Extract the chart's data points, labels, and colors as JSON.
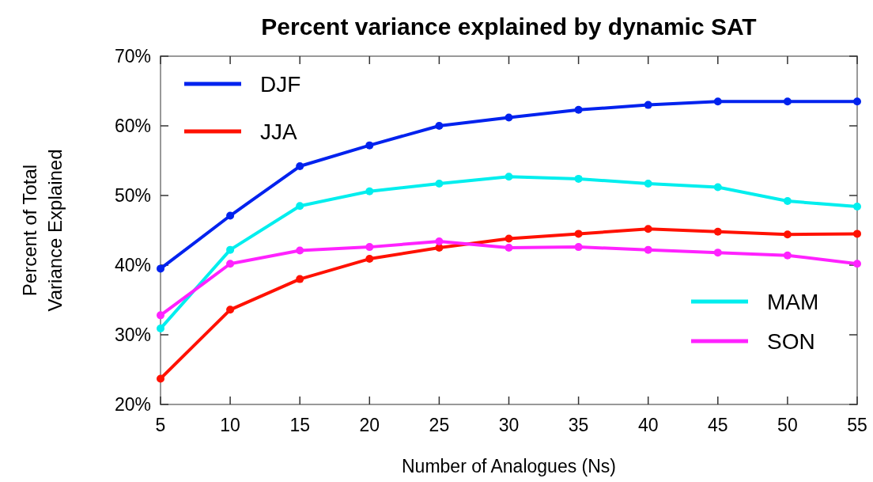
{
  "chart_data": {
    "type": "line",
    "title": "Percent variance explained by dynamic SAT",
    "xlabel": "Number of Analogues (Ns)",
    "ylabel": "Percent of Total\nVariance Explained",
    "x": [
      5,
      10,
      15,
      20,
      25,
      30,
      35,
      40,
      45,
      50,
      55
    ],
    "series": [
      {
        "name": "DJF",
        "color": "#0022ee",
        "values": [
          39.5,
          47.1,
          54.2,
          57.2,
          60.0,
          61.2,
          62.3,
          63.0,
          63.5,
          63.5,
          63.5
        ]
      },
      {
        "name": "JJA",
        "color": "#ff1100",
        "values": [
          23.7,
          33.6,
          38.0,
          40.9,
          42.5,
          43.8,
          44.5,
          45.2,
          44.8,
          44.4,
          44.5
        ]
      },
      {
        "name": "MAM",
        "color": "#00eeee",
        "values": [
          30.9,
          42.2,
          48.5,
          50.6,
          51.7,
          52.7,
          52.4,
          51.7,
          51.2,
          49.2,
          48.4
        ]
      },
      {
        "name": "SON",
        "color": "#ff22ff",
        "values": [
          32.8,
          40.2,
          42.1,
          42.6,
          43.4,
          42.5,
          42.6,
          42.2,
          41.8,
          41.4,
          40.2
        ]
      }
    ],
    "xlim": [
      5,
      55
    ],
    "xticks": [
      5,
      10,
      15,
      20,
      25,
      30,
      35,
      40,
      45,
      50,
      55
    ],
    "ylim": [
      20,
      70
    ],
    "yticks": [
      {
        "value": 20,
        "label": "20%"
      },
      {
        "value": 30,
        "label": "30%"
      },
      {
        "value": 40,
        "label": "40%"
      },
      {
        "value": 50,
        "label": "50%"
      },
      {
        "value": 60,
        "label": "60%"
      },
      {
        "value": 70,
        "label": "70%"
      }
    ],
    "grid": false,
    "legend": "top left",
    "marker": "circle",
    "line_style": "solid"
  }
}
